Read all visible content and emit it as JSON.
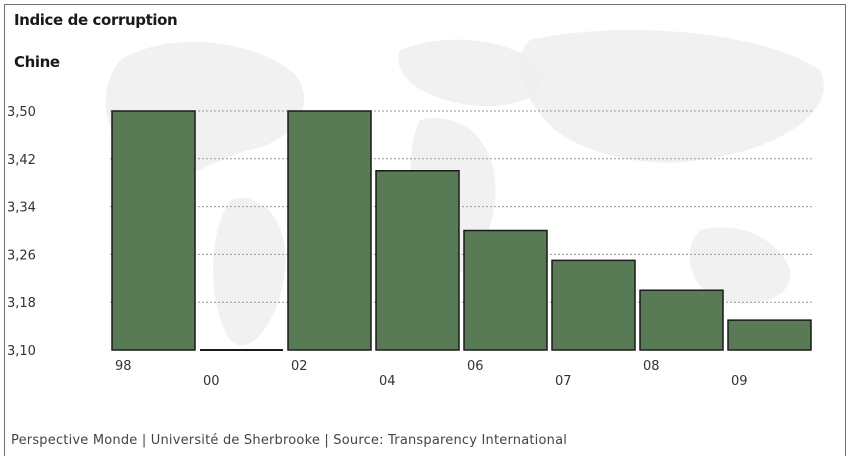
{
  "chart_data": {
    "type": "bar",
    "title": "Indice de corruption",
    "subtitle": "Chine",
    "categories": [
      "98",
      "00",
      "02",
      "04",
      "06",
      "07",
      "08",
      "09"
    ],
    "values": [
      3.5,
      3.1,
      3.5,
      3.4,
      3.3,
      3.25,
      3.2,
      3.15
    ],
    "yticks": [
      "3,10",
      "3,18",
      "3,26",
      "3,34",
      "3,42",
      "3,50"
    ],
    "ytick_values": [
      3.1,
      3.18,
      3.26,
      3.34,
      3.42,
      3.5
    ],
    "ylim": [
      3.1,
      3.5
    ],
    "grid": true,
    "bar_color": "#587a55",
    "bar_edge_color": "#1a1a1a",
    "grid_color": "#9a9a9a"
  },
  "footer": "Perspective Monde | Université de Sherbrooke | Source: Transparency International"
}
